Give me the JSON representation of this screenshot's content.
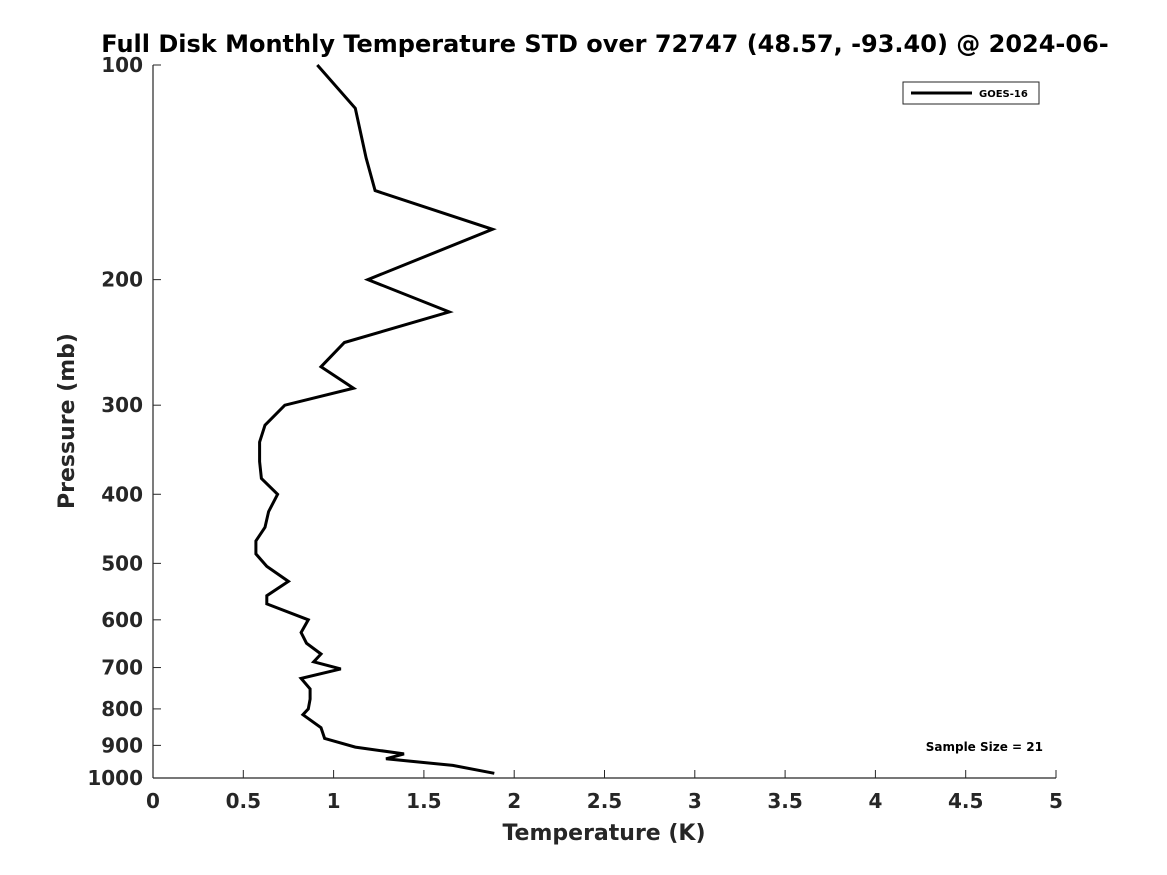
{
  "chart_data": {
    "type": "line",
    "title": "Full Disk Monthly Temperature STD over 72747 (48.57, -93.40) @ 2024-06-",
    "xlabel": "Temperature (K)",
    "ylabel": "Pressure (mb)",
    "xlim": [
      0,
      5
    ],
    "ylim": [
      100,
      1000
    ],
    "y_scale": "log",
    "y_reversed": true,
    "x_ticks": [
      "0",
      "0.5",
      "1",
      "1.5",
      "2",
      "2.5",
      "3",
      "3.5",
      "4",
      "4.5",
      "5"
    ],
    "y_ticks": [
      "100",
      "200",
      "300",
      "400",
      "500",
      "600",
      "700",
      "800",
      "900",
      "1000"
    ],
    "grid": false,
    "legend_position": "top-right",
    "series": [
      {
        "name": "GOES-16",
        "color": "#000000",
        "x": [
          0.91,
          1.12,
          1.18,
          1.23,
          1.88,
          1.19,
          1.64,
          1.06,
          0.93,
          1.11,
          0.73,
          0.62,
          0.59,
          0.59,
          0.6,
          0.69,
          0.64,
          0.62,
          0.57,
          0.57,
          0.63,
          0.75,
          0.63,
          0.63,
          0.86,
          0.82,
          0.85,
          0.93,
          0.89,
          1.04,
          0.82,
          0.87,
          0.87,
          0.86,
          0.83,
          0.93,
          0.95,
          1.12,
          1.39,
          1.29,
          1.66,
          1.89
        ],
        "y": [
          100,
          115,
          135,
          150,
          170,
          200,
          222,
          245,
          265,
          284,
          300,
          320,
          338,
          360,
          380,
          400,
          423,
          445,
          465,
          485,
          505,
          530,
          555,
          570,
          600,
          625,
          647,
          670,
          687,
          703,
          725,
          750,
          775,
          800,
          815,
          850,
          880,
          905,
          925,
          940,
          960,
          985
        ]
      }
    ],
    "annotation": "Sample Size = 21"
  }
}
